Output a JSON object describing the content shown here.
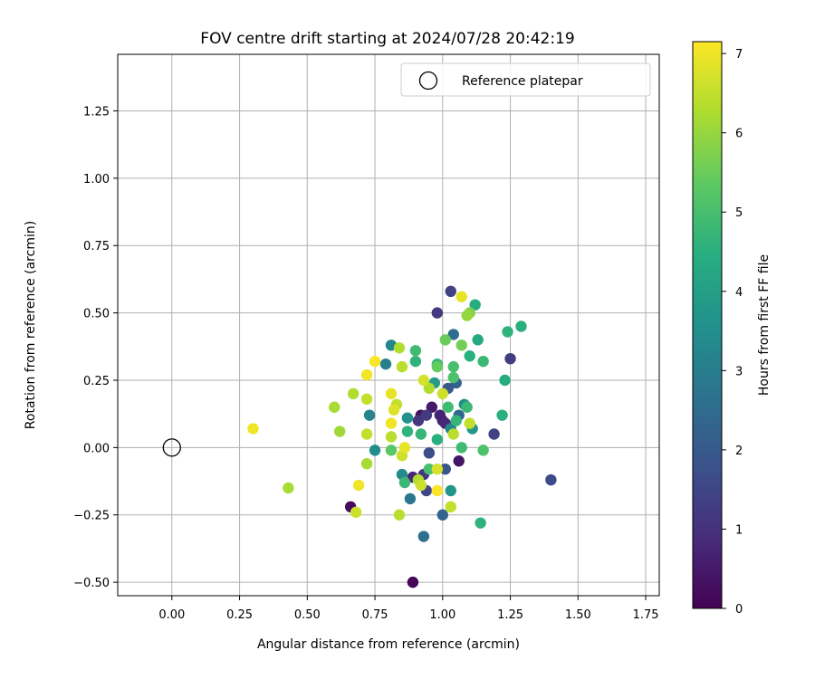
{
  "chart_data": {
    "type": "scatter",
    "title": "FOV centre drift starting at 2024/07/28 20:42:19",
    "xlabel": "Angular distance from reference (arcmin)",
    "ylabel": "Rotation from reference (arcmin)",
    "xlim": [
      -0.2,
      1.8
    ],
    "ylim": [
      -0.55,
      1.46
    ],
    "x_ticks": [
      "0.00",
      "0.25",
      "0.50",
      "0.75",
      "1.00",
      "1.25",
      "1.50",
      "1.75"
    ],
    "y_ticks": [
      "−0.50",
      "−0.25",
      "0.00",
      "0.25",
      "0.50",
      "0.75",
      "1.00",
      "1.25"
    ],
    "grid": true,
    "legend": {
      "position": "top-right",
      "entries": [
        "Reference platepar"
      ]
    },
    "reference_point": {
      "label": "Reference platepar",
      "x": 0.0,
      "y": 0.0,
      "marker": "open-circle"
    },
    "colorbar": {
      "label": "Hours from first FF file",
      "range": [
        0,
        7.15
      ],
      "ticks": [
        "0",
        "1",
        "2",
        "3",
        "4",
        "5",
        "6",
        "7"
      ],
      "colormap": "viridis"
    },
    "points": [
      {
        "x": 0.89,
        "y": -0.5,
        "c": 0.1
      },
      {
        "x": 0.66,
        "y": -0.22,
        "c": 0.2
      },
      {
        "x": 0.92,
        "y": 0.12,
        "c": 0.3
      },
      {
        "x": 0.96,
        "y": 0.15,
        "c": 0.5
      },
      {
        "x": 1.0,
        "y": 0.1,
        "c": 0.6
      },
      {
        "x": 0.99,
        "y": 0.12,
        "c": 0.7
      },
      {
        "x": 1.06,
        "y": -0.05,
        "c": 0.4
      },
      {
        "x": 0.89,
        "y": -0.11,
        "c": 0.8
      },
      {
        "x": 1.01,
        "y": 0.09,
        "c": 0.8
      },
      {
        "x": 1.03,
        "y": 0.58,
        "c": 1.4
      },
      {
        "x": 0.98,
        "y": 0.5,
        "c": 1.2
      },
      {
        "x": 1.4,
        "y": -0.12,
        "c": 1.6
      },
      {
        "x": 1.25,
        "y": 0.33,
        "c": 1.3
      },
      {
        "x": 1.19,
        "y": 0.05,
        "c": 1.4
      },
      {
        "x": 0.91,
        "y": 0.1,
        "c": 1.1
      },
      {
        "x": 0.94,
        "y": 0.12,
        "c": 1.2
      },
      {
        "x": 0.93,
        "y": -0.1,
        "c": 1.1
      },
      {
        "x": 0.94,
        "y": -0.16,
        "c": 1.5
      },
      {
        "x": 0.95,
        "y": -0.02,
        "c": 1.7
      },
      {
        "x": 1.01,
        "y": -0.08,
        "c": 1.9
      },
      {
        "x": 1.0,
        "y": -0.25,
        "c": 2.3
      },
      {
        "x": 0.93,
        "y": -0.33,
        "c": 2.6
      },
      {
        "x": 0.88,
        "y": -0.19,
        "c": 2.8
      },
      {
        "x": 1.04,
        "y": 0.42,
        "c": 2.5
      },
      {
        "x": 1.05,
        "y": 0.24,
        "c": 2.2
      },
      {
        "x": 1.02,
        "y": 0.22,
        "c": 2.0
      },
      {
        "x": 1.06,
        "y": 0.12,
        "c": 2.4
      },
      {
        "x": 0.79,
        "y": 0.31,
        "c": 3.1
      },
      {
        "x": 0.81,
        "y": 0.38,
        "c": 3.3
      },
      {
        "x": 0.73,
        "y": 0.12,
        "c": 3.2
      },
      {
        "x": 0.75,
        "y": -0.01,
        "c": 3.5
      },
      {
        "x": 0.85,
        "y": -0.1,
        "c": 3.4
      },
      {
        "x": 0.87,
        "y": 0.11,
        "c": 3.6
      },
      {
        "x": 1.03,
        "y": -0.16,
        "c": 3.7
      },
      {
        "x": 1.03,
        "y": 0.07,
        "c": 3.3
      },
      {
        "x": 1.08,
        "y": 0.16,
        "c": 3.5
      },
      {
        "x": 1.11,
        "y": 0.07,
        "c": 3.8
      },
      {
        "x": 0.97,
        "y": 0.24,
        "c": 3.9
      },
      {
        "x": 1.13,
        "y": 0.4,
        "c": 4.3
      },
      {
        "x": 1.12,
        "y": 0.53,
        "c": 4.4
      },
      {
        "x": 1.29,
        "y": 0.45,
        "c": 4.5
      },
      {
        "x": 1.24,
        "y": 0.43,
        "c": 4.6
      },
      {
        "x": 1.23,
        "y": 0.25,
        "c": 4.4
      },
      {
        "x": 1.22,
        "y": 0.12,
        "c": 4.5
      },
      {
        "x": 1.14,
        "y": -0.28,
        "c": 4.6
      },
      {
        "x": 1.15,
        "y": 0.32,
        "c": 4.8
      },
      {
        "x": 1.1,
        "y": 0.34,
        "c": 4.5
      },
      {
        "x": 0.9,
        "y": 0.32,
        "c": 4.6
      },
      {
        "x": 0.9,
        "y": 0.36,
        "c": 4.9
      },
      {
        "x": 0.98,
        "y": 0.31,
        "c": 4.7
      },
      {
        "x": 1.04,
        "y": 0.3,
        "c": 5.0
      },
      {
        "x": 1.04,
        "y": 0.26,
        "c": 5.1
      },
      {
        "x": 1.02,
        "y": 0.15,
        "c": 4.9
      },
      {
        "x": 1.09,
        "y": 0.15,
        "c": 4.8
      },
      {
        "x": 1.05,
        "y": 0.1,
        "c": 4.7
      },
      {
        "x": 1.07,
        "y": 0.0,
        "c": 4.9
      },
      {
        "x": 0.98,
        "y": 0.03,
        "c": 4.5
      },
      {
        "x": 0.92,
        "y": 0.05,
        "c": 4.7
      },
      {
        "x": 0.86,
        "y": -0.13,
        "c": 4.8
      },
      {
        "x": 0.95,
        "y": -0.08,
        "c": 5.0
      },
      {
        "x": 1.15,
        "y": -0.01,
        "c": 5.1
      },
      {
        "x": 0.81,
        "y": -0.01,
        "c": 5.3
      },
      {
        "x": 0.87,
        "y": 0.06,
        "c": 4.6
      },
      {
        "x": 1.01,
        "y": 0.4,
        "c": 5.5
      },
      {
        "x": 1.07,
        "y": 0.38,
        "c": 5.6
      },
      {
        "x": 1.1,
        "y": 0.5,
        "c": 5.8
      },
      {
        "x": 1.09,
        "y": 0.49,
        "c": 6.0
      },
      {
        "x": 0.98,
        "y": 0.3,
        "c": 5.4
      },
      {
        "x": 0.84,
        "y": 0.37,
        "c": 6.3
      },
      {
        "x": 0.85,
        "y": 0.3,
        "c": 6.4
      },
      {
        "x": 0.72,
        "y": 0.18,
        "c": 6.5
      },
      {
        "x": 0.67,
        "y": 0.2,
        "c": 6.3
      },
      {
        "x": 0.6,
        "y": 0.15,
        "c": 6.2
      },
      {
        "x": 0.62,
        "y": 0.06,
        "c": 6.1
      },
      {
        "x": 0.72,
        "y": 0.05,
        "c": 6.5
      },
      {
        "x": 0.72,
        "y": -0.06,
        "c": 6.2
      },
      {
        "x": 0.43,
        "y": -0.15,
        "c": 6.2
      },
      {
        "x": 0.68,
        "y": -0.24,
        "c": 6.6
      },
      {
        "x": 0.84,
        "y": -0.25,
        "c": 6.4
      },
      {
        "x": 0.83,
        "y": 0.16,
        "c": 6.5
      },
      {
        "x": 0.85,
        "y": -0.03,
        "c": 6.6
      },
      {
        "x": 0.81,
        "y": 0.04,
        "c": 6.4
      },
      {
        "x": 0.95,
        "y": 0.22,
        "c": 6.3
      },
      {
        "x": 0.93,
        "y": 0.25,
        "c": 6.7
      },
      {
        "x": 1.0,
        "y": 0.2,
        "c": 6.6
      },
      {
        "x": 1.1,
        "y": 0.09,
        "c": 6.5
      },
      {
        "x": 1.04,
        "y": 0.05,
        "c": 6.4
      },
      {
        "x": 0.91,
        "y": -0.12,
        "c": 6.3
      },
      {
        "x": 0.92,
        "y": -0.14,
        "c": 6.6
      },
      {
        "x": 0.98,
        "y": -0.08,
        "c": 6.7
      },
      {
        "x": 1.03,
        "y": -0.22,
        "c": 6.5
      },
      {
        "x": 0.3,
        "y": 0.07,
        "c": 7.0
      },
      {
        "x": 0.75,
        "y": 0.32,
        "c": 7.1
      },
      {
        "x": 0.72,
        "y": 0.27,
        "c": 7.0
      },
      {
        "x": 0.81,
        "y": 0.2,
        "c": 6.9
      },
      {
        "x": 0.82,
        "y": 0.14,
        "c": 6.8
      },
      {
        "x": 0.81,
        "y": 0.09,
        "c": 7.0
      },
      {
        "x": 0.86,
        "y": 0.0,
        "c": 6.9
      },
      {
        "x": 0.69,
        "y": -0.14,
        "c": 7.0
      },
      {
        "x": 0.98,
        "y": -0.16,
        "c": 7.1
      },
      {
        "x": 1.07,
        "y": 0.56,
        "c": 6.9
      }
    ]
  }
}
